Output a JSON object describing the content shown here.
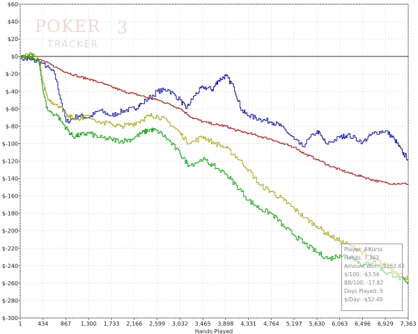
{
  "chart_data": {
    "type": "line",
    "title": "",
    "xlabel": "Hands Played",
    "ylabel": "",
    "xlim": [
      1,
      7363
    ],
    "ylim": [
      -300,
      60
    ],
    "x_ticks": [
      "1",
      "434",
      "867",
      "1,300",
      "1,733",
      "2,166",
      "2,599",
      "3,032",
      "3,465",
      "3,898",
      "4,331",
      "4,764",
      "5,197",
      "5,630",
      "6,063",
      "6,496",
      "6,929",
      "7,363"
    ],
    "y_ticks": [
      "$60",
      "$40",
      "$20",
      "$0",
      "$-20",
      "$-40",
      "$-60",
      "$-80",
      "$-100",
      "$-120",
      "$-140",
      "$-160",
      "$-180",
      "$-200",
      "$-220",
      "$-240",
      "$-260",
      "$-280",
      "$-300"
    ],
    "grid": true,
    "series": [
      {
        "color": "#1a1aa0",
        "x": [
          1,
          200,
          434,
          650,
          867,
          1100,
          1300,
          1500,
          1733,
          1950,
          2166,
          2300,
          2599,
          2800,
          3032,
          3150,
          3300,
          3465,
          3650,
          3750,
          3898,
          4050,
          4200,
          4331,
          4550,
          4764,
          4950,
          5197,
          5350,
          5630,
          5800,
          6063,
          6200,
          6496,
          6700,
          6929,
          7100,
          7250,
          7363
        ],
        "y": [
          -2,
          -4,
          -8,
          -20,
          -75,
          -68,
          -70,
          -62,
          -68,
          -62,
          -60,
          -54,
          -40,
          -38,
          -50,
          -60,
          -45,
          -35,
          -38,
          -28,
          -22,
          -35,
          -62,
          -68,
          -72,
          -75,
          -80,
          -95,
          -103,
          -85,
          -100,
          -93,
          -90,
          -98,
          -88,
          -85,
          -95,
          -110,
          -118
        ]
      },
      {
        "color": "#a01818",
        "x": [
          1,
          200,
          434,
          650,
          867,
          1100,
          1300,
          1500,
          1733,
          1950,
          2166,
          2400,
          2599,
          2800,
          3032,
          3250,
          3465,
          3700,
          3898,
          4100,
          4331,
          4550,
          4764,
          4950,
          5197,
          5400,
          5630,
          5850,
          6063,
          6300,
          6496,
          6700,
          6929,
          7150,
          7363
        ],
        "y": [
          0,
          -2,
          -5,
          -12,
          -18,
          -23,
          -26,
          -30,
          -35,
          -40,
          -43,
          -47,
          -50,
          -54,
          -60,
          -70,
          -75,
          -78,
          -80,
          -85,
          -88,
          -92,
          -95,
          -100,
          -104,
          -112,
          -118,
          -125,
          -130,
          -135,
          -138,
          -142,
          -145,
          -146,
          -146
        ]
      },
      {
        "color": "#a8a820",
        "x": [
          1,
          200,
          350,
          434,
          520,
          700,
          867,
          1000,
          1150,
          1300,
          1500,
          1733,
          1900,
          2100,
          2300,
          2450,
          2599,
          2800,
          3032,
          3200,
          3465,
          3650,
          3898,
          4100,
          4331,
          4550,
          4764,
          5000,
          5197,
          5400,
          5630,
          5850,
          6063,
          6300,
          6496,
          6700,
          6929,
          7150,
          7363
        ],
        "y": [
          0,
          2,
          -3,
          -30,
          -50,
          -55,
          -65,
          -72,
          -70,
          -68,
          -75,
          -78,
          -80,
          -78,
          -73,
          -68,
          -68,
          -75,
          -88,
          -100,
          -92,
          -98,
          -105,
          -115,
          -130,
          -148,
          -155,
          -165,
          -175,
          -185,
          -195,
          -205,
          -212,
          -218,
          -225,
          -232,
          -240,
          -248,
          -255
        ]
      },
      {
        "color": "#18a018",
        "x": [
          1,
          200,
          350,
          434,
          520,
          700,
          867,
          1000,
          1150,
          1300,
          1500,
          1733,
          1900,
          2100,
          2300,
          2450,
          2599,
          2800,
          3032,
          3200,
          3465,
          3650,
          3898,
          4100,
          4331,
          4550,
          4764,
          5000,
          5197,
          5400,
          5630,
          5850,
          6063,
          6300,
          6496,
          6700,
          6929,
          7150,
          7363
        ],
        "y": [
          -2,
          0,
          -5,
          -40,
          -62,
          -68,
          -82,
          -92,
          -90,
          -88,
          -93,
          -95,
          -97,
          -95,
          -88,
          -84,
          -85,
          -95,
          -112,
          -125,
          -118,
          -125,
          -135,
          -148,
          -165,
          -175,
          -180,
          -195,
          -205,
          -215,
          -225,
          -232,
          -228,
          -230,
          -240,
          -235,
          -248,
          -252,
          -262
        ]
      }
    ]
  },
  "stats": {
    "player": "Player: AlKurss",
    "hands": "Hands: 7,363",
    "amount_won": "Amount Won: -$262.43",
    "per100": "$/100: -$3.56",
    "bb100": "BB/100: -17.82",
    "days": "Days Played: 5",
    "per_day": "$/Day: -$52.49"
  },
  "watermark": {
    "line1": "POKER",
    "suffix": "3",
    "line2": "TRACKER"
  }
}
